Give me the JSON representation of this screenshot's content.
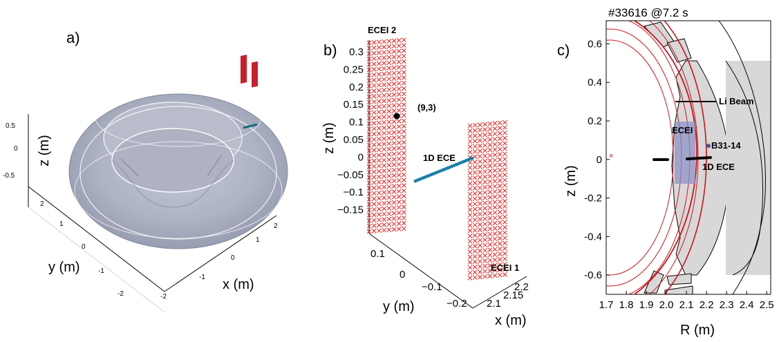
{
  "figure": {
    "panels": [
      {
        "id": "a",
        "label": "a)",
        "type": "3d-torus",
        "xlabel": "x (m)",
        "ylabel": "y (m)",
        "zlabel": "z (m)",
        "x_ticks": [
          "-2",
          "-1",
          "0",
          "1",
          "2"
        ],
        "y_ticks": [
          "-2",
          "-1",
          "0",
          "1",
          "2"
        ],
        "z_ticks": [
          "0.5",
          "0",
          "-0.5"
        ],
        "torus_color": "#9ea3b6",
        "antenna_color": "#c8202a"
      },
      {
        "id": "b",
        "label": "b)",
        "type": "3d-measurement-geometry",
        "xlabel": "x (m)",
        "ylabel": "y (m)",
        "zlabel": "z (m)",
        "z_ticks": [
          "0.3",
          "0.25",
          "0.2",
          "0.15",
          "0.1",
          "0.05",
          "0",
          "−0.05",
          "−0.1",
          "−0.15"
        ],
        "y_ticks": [
          "0.1",
          "0",
          "−0.1",
          "−0.2"
        ],
        "x_ticks": [
          "2.1",
          "2.15",
          "2.2"
        ],
        "annotations": {
          "ecei2": "ECEI 2",
          "ecei1": "ECEI 1",
          "ece1d": "1D ECE",
          "channel": "(9,3)"
        },
        "ecei_color": "#e8201f",
        "ece_color": "#1a7fa8"
      },
      {
        "id": "c",
        "label": "c)",
        "type": "poloidal-cross-section",
        "title": "#33616 @7.2 s",
        "xlabel": "R (m)",
        "ylabel": "z (m)",
        "x_ticks": [
          "1.7",
          "1.8",
          "1.9",
          "2.0",
          "2.1",
          "2.2",
          "2.3",
          "2.4",
          "2.5"
        ],
        "y_ticks": [
          "0.6",
          "0.4",
          "0.2",
          "0",
          "-0.2",
          "-0.4",
          "-0.6"
        ],
        "xlim": [
          1.7,
          2.52
        ],
        "ylim": [
          -0.7,
          0.72
        ],
        "annotations": {
          "li_beam": "Li Beam",
          "ecei": "ECEI",
          "probe": "B31-14",
          "ece1d": "1D ECE"
        },
        "flux_color": "#d0121b",
        "wall_color": "#d8d8d8",
        "ecei_box_color": "#8a90c8"
      }
    ]
  },
  "chart_data": [
    {
      "type": "scatter",
      "panel": "b",
      "xlabel": "y (m)",
      "ylabel": "z (m)",
      "series": [
        {
          "name": "ECEI 2",
          "points": "grid"
        },
        {
          "name": "ECEI 1",
          "points": "grid"
        },
        {
          "name": "1D ECE",
          "points": "line"
        }
      ]
    },
    {
      "type": "line",
      "panel": "c",
      "xlabel": "R (m)",
      "ylabel": "z (m)",
      "xlim": [
        1.7,
        2.52
      ],
      "ylim": [
        -0.7,
        0.72
      ],
      "points": [
        {
          "label": "B31-14",
          "R": 2.215,
          "z": 0.05
        },
        {
          "label": "magnetic-axis",
          "R": 1.72,
          "z": 0.0
        }
      ],
      "ece_segments": [
        {
          "R0": 1.98,
          "R1": 2.02,
          "z": -0.01
        },
        {
          "R0": 2.11,
          "R1": 2.22,
          "z": -0.01
        }
      ],
      "li_beam": {
        "R0": 2.12,
        "R1": 2.28,
        "z": 0.32
      },
      "ecei_box": {
        "R0": 2.12,
        "R1": 2.18,
        "z0": -0.14,
        "z1": 0.14
      }
    }
  ]
}
